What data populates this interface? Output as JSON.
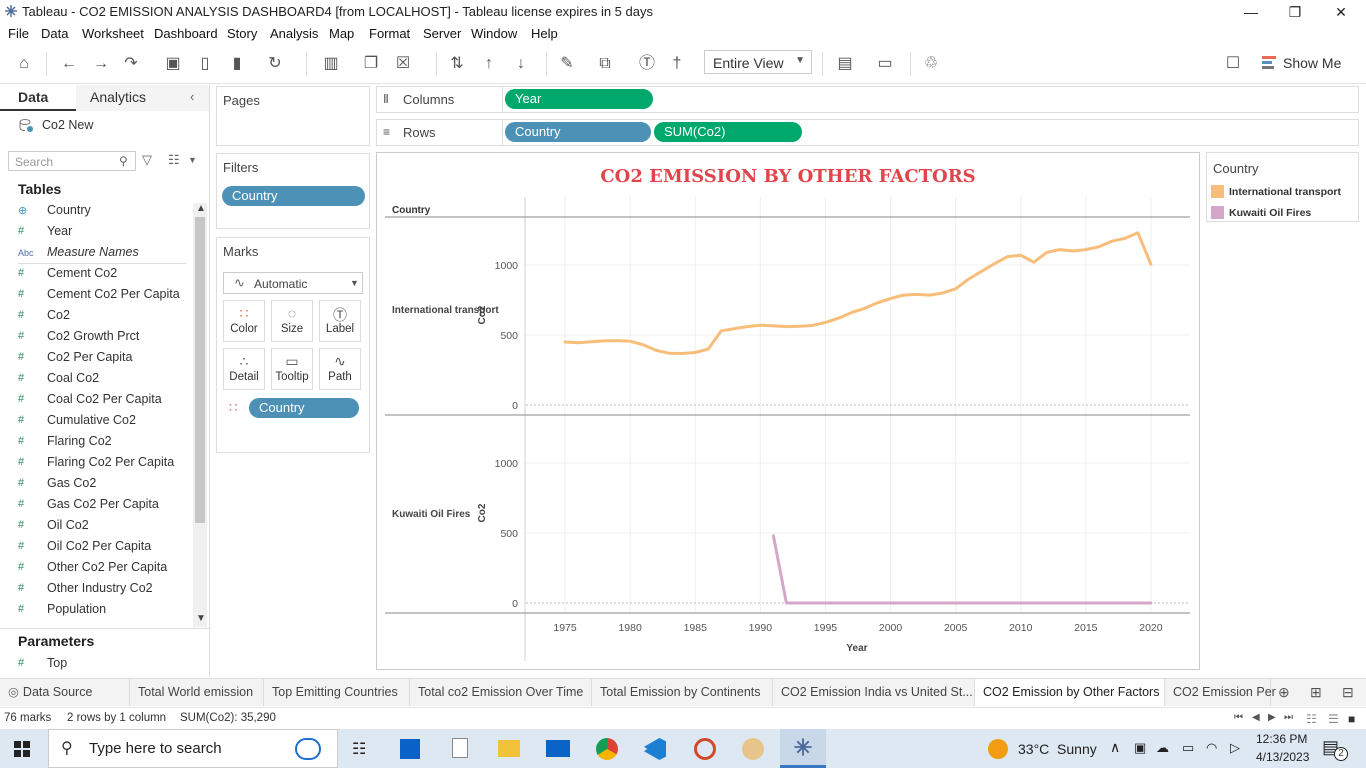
{
  "window": {
    "title": "Tableau - CO2 EMISSION ANALYSIS DASHBOARD4 [from LOCALHOST] - Tableau license expires in 5 days"
  },
  "menu": [
    "File",
    "Data",
    "Worksheet",
    "Dashboard",
    "Story",
    "Analysis",
    "Map",
    "Format",
    "Server",
    "Window",
    "Help"
  ],
  "toolbar": {
    "view_mode": "Entire View",
    "show_me": "Show Me"
  },
  "data_pane": {
    "tab_data": "Data",
    "tab_analytics": "Analytics",
    "datasource": "Co2 New",
    "search_placeholder": "Search",
    "tables_header": "Tables",
    "fields": [
      {
        "type": "globe",
        "name": "Country"
      },
      {
        "type": "#",
        "name": "Year"
      },
      {
        "type": "Abc",
        "name": "Measure Names"
      },
      {
        "type": "#",
        "name": "Cement Co2"
      },
      {
        "type": "#",
        "name": "Cement Co2 Per Capita"
      },
      {
        "type": "#",
        "name": "Co2"
      },
      {
        "type": "#",
        "name": "Co2 Growth Prct"
      },
      {
        "type": "#",
        "name": "Co2 Per Capita"
      },
      {
        "type": "#",
        "name": "Coal Co2"
      },
      {
        "type": "#",
        "name": "Coal Co2 Per Capita"
      },
      {
        "type": "#",
        "name": "Cumulative Co2"
      },
      {
        "type": "#",
        "name": "Flaring Co2"
      },
      {
        "type": "#",
        "name": "Flaring Co2 Per Capita"
      },
      {
        "type": "#",
        "name": "Gas Co2"
      },
      {
        "type": "#",
        "name": "Gas Co2 Per Capita"
      },
      {
        "type": "#",
        "name": "Oil Co2"
      },
      {
        "type": "#",
        "name": "Oil Co2 Per Capita"
      },
      {
        "type": "#",
        "name": "Other Co2 Per Capita"
      },
      {
        "type": "#",
        "name": "Other Industry Co2"
      },
      {
        "type": "#",
        "name": "Population"
      }
    ],
    "parameters_header": "Parameters",
    "parameters": [
      {
        "type": "#",
        "name": "Top"
      }
    ]
  },
  "shelves": {
    "pages": "Pages",
    "filters": "Filters",
    "filter_pill": "Country",
    "marks": "Marks",
    "mark_type": "Automatic",
    "mark_buttons": [
      "Color",
      "Size",
      "Label",
      "Detail",
      "Tooltip",
      "Path"
    ],
    "marks_pill": "Country",
    "columns_label": "Columns",
    "columns_pill": "Year",
    "rows_label": "Rows",
    "rows_pills": [
      "Country",
      "SUM(Co2)"
    ]
  },
  "chart_data": {
    "type": "line",
    "title": "CO2 EMISSION BY OTHER FACTORS",
    "row_header": "Country",
    "xlabel": "Year",
    "ylabel": "Co2",
    "xlim": [
      1972,
      2023
    ],
    "x_ticks": [
      "1975",
      "1980",
      "1985",
      "1990",
      "1995",
      "2000",
      "2005",
      "2010",
      "2015",
      "2020"
    ],
    "y_ticks": [
      "0",
      "500",
      "1000"
    ],
    "panes": [
      {
        "name": "International transport",
        "color": "#f9bd7a",
        "ylim": [
          0,
          1350
        ],
        "x": [
          1975,
          1976,
          1977,
          1978,
          1979,
          1980,
          1981,
          1982,
          1983,
          1984,
          1985,
          1986,
          1987,
          1988,
          1989,
          1990,
          1991,
          1992,
          1993,
          1994,
          1995,
          1996,
          1997,
          1998,
          1999,
          2000,
          2001,
          2002,
          2003,
          2004,
          2005,
          2006,
          2007,
          2008,
          2009,
          2010,
          2011,
          2012,
          2013,
          2014,
          2015,
          2016,
          2017,
          2018,
          2019,
          2020
        ],
        "y": [
          450,
          445,
          452,
          458,
          460,
          455,
          430,
          390,
          370,
          368,
          375,
          400,
          530,
          545,
          560,
          570,
          565,
          560,
          562,
          568,
          590,
          620,
          660,
          690,
          730,
          760,
          785,
          790,
          785,
          800,
          830,
          900,
          955,
          1010,
          1060,
          1070,
          1020,
          1090,
          1110,
          1100,
          1110,
          1130,
          1170,
          1190,
          1230,
          1005
        ]
      },
      {
        "name": "Kuwaiti Oil Fires",
        "color": "#d4a6c8",
        "ylim": [
          0,
          1350
        ],
        "x": [
          1991,
          1992,
          1993,
          1995,
          2000,
          2005,
          2010,
          2015,
          2020
        ],
        "y": [
          480,
          0,
          0,
          0,
          0,
          0,
          0,
          0,
          0
        ]
      }
    ],
    "legend": {
      "title": "Country",
      "placement": "right",
      "entries": [
        {
          "name": "International transport",
          "color": "#f9bd7a"
        },
        {
          "name": "Kuwaiti Oil Fires",
          "color": "#d4a6c8"
        }
      ]
    }
  },
  "sheet_tabs": [
    {
      "label": "Data Source",
      "active": false
    },
    {
      "label": "Total World emission",
      "active": false
    },
    {
      "label": "Top Emitting Countries",
      "active": false
    },
    {
      "label": "Total co2 Emission Over Time",
      "active": false
    },
    {
      "label": "Total Emission by Continents",
      "active": false
    },
    {
      "label": "CO2 Emission India vs United St...",
      "active": false
    },
    {
      "label": "CO2 Emission by Other Factors",
      "active": true
    },
    {
      "label": "CO2 Emission Per",
      "active": false
    }
  ],
  "status": {
    "marks": "76 marks",
    "layout": "2 rows by 1 column",
    "sum": "SUM(Co2): 35,290"
  },
  "taskbar": {
    "search_placeholder": "Type here to search",
    "weather": "33°C  Sunny",
    "time": "12:36 PM",
    "date": "4/13/2023",
    "notifications": "2"
  }
}
